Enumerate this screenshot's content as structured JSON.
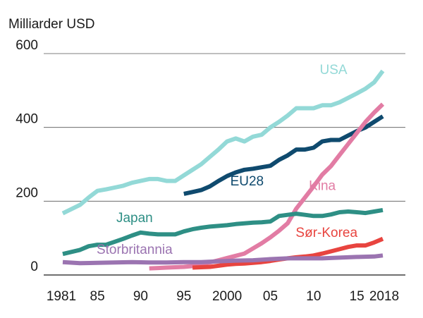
{
  "chart_data": {
    "type": "line",
    "title": "",
    "ylabel": "Milliarder USD",
    "xlabel": "",
    "ylim": [
      0,
      600
    ],
    "yticks": [
      0,
      200,
      400,
      600
    ],
    "xlim": [
      1981,
      2018
    ],
    "xticks": [
      {
        "value": 1981,
        "label": "1981"
      },
      {
        "value": 1985,
        "label": "85"
      },
      {
        "value": 1990,
        "label": "90"
      },
      {
        "value": 1995,
        "label": "95"
      },
      {
        "value": 2000,
        "label": "2000"
      },
      {
        "value": 2005,
        "label": "05"
      },
      {
        "value": 2010,
        "label": "10"
      },
      {
        "value": 2015,
        "label": "15"
      },
      {
        "value": 2018,
        "label": "2018"
      }
    ],
    "grid": true,
    "series": [
      {
        "name": "USA",
        "color": "#93d9d7",
        "label_x": 2012.3,
        "label_y": 545,
        "x": [
          1981,
          1983,
          1984,
          1985,
          1986,
          1987,
          1988,
          1989,
          1990,
          1991,
          1992,
          1993,
          1994,
          1995,
          1996,
          1997,
          1998,
          1999,
          2000,
          2001,
          2002,
          2003,
          2004,
          2005,
          2006,
          2007,
          2008,
          2009,
          2010,
          2011,
          2012,
          2013,
          2014,
          2015,
          2016,
          2017,
          2018
        ],
        "values": [
          167,
          190,
          210,
          228,
          232,
          237,
          242,
          250,
          255,
          260,
          260,
          255,
          255,
          270,
          285,
          300,
          320,
          340,
          362,
          370,
          362,
          375,
          380,
          400,
          415,
          432,
          452,
          452,
          452,
          460,
          460,
          468,
          480,
          492,
          505,
          522,
          553
        ]
      },
      {
        "name": "EU28",
        "color": "#0f4a6e",
        "label_x": 2002.3,
        "label_y": 243,
        "x": [
          1995,
          1996,
          1997,
          1998,
          1999,
          2000,
          2001,
          2002,
          2003,
          2004,
          2005,
          2006,
          2007,
          2008,
          2009,
          2010,
          2011,
          2012,
          2013,
          2014,
          2015,
          2016,
          2017,
          2018
        ],
        "values": [
          220,
          225,
          230,
          240,
          255,
          268,
          278,
          285,
          288,
          292,
          296,
          312,
          324,
          340,
          340,
          345,
          362,
          366,
          366,
          378,
          390,
          400,
          415,
          430
        ]
      },
      {
        "name": "Kina",
        "color": "#e27ca4",
        "label_x": 2011.0,
        "label_y": 230,
        "x": [
          1991,
          1992,
          1993,
          1994,
          1995,
          1996,
          1997,
          1998,
          1999,
          2000,
          2001,
          2002,
          2003,
          2004,
          2005,
          2006,
          2007,
          2008,
          2009,
          2010,
          2011,
          2012,
          2013,
          2014,
          2015,
          2016,
          2017,
          2018
        ],
        "values": [
          18,
          19,
          20,
          21,
          22,
          24,
          28,
          34,
          40,
          46,
          52,
          58,
          72,
          86,
          102,
          120,
          140,
          180,
          210,
          240,
          272,
          295,
          325,
          355,
          385,
          415,
          440,
          463
        ]
      },
      {
        "name": "Japan",
        "color": "#2e8f85",
        "label_x": 1989.3,
        "label_y": 143,
        "x": [
          1981,
          1983,
          1984,
          1985,
          1986,
          1987,
          1988,
          1989,
          1990,
          1991,
          1992,
          1993,
          1994,
          1995,
          1996,
          1997,
          1998,
          1999,
          2000,
          2001,
          2002,
          2003,
          2004,
          2005,
          2006,
          2007,
          2008,
          2009,
          2010,
          2011,
          2012,
          2013,
          2014,
          2015,
          2016,
          2017,
          2018
        ],
        "values": [
          57,
          68,
          78,
          82,
          82,
          90,
          98,
          107,
          115,
          112,
          110,
          110,
          110,
          118,
          124,
          128,
          131,
          133,
          135,
          138,
          140,
          142,
          143,
          145,
          160,
          163,
          166,
          163,
          160,
          160,
          164,
          170,
          172,
          170,
          168,
          172,
          176
        ]
      },
      {
        "name": "Sør-Korea",
        "color": "#e8443f",
        "label_x": 2011.5,
        "label_y": 103,
        "x": [
          1996,
          1997,
          1998,
          1999,
          2000,
          2001,
          2002,
          2003,
          2004,
          2005,
          2006,
          2007,
          2008,
          2009,
          2010,
          2011,
          2012,
          2013,
          2014,
          2015,
          2016,
          2017,
          2018
        ],
        "values": [
          20,
          21,
          22,
          25,
          28,
          30,
          31,
          33,
          35,
          38,
          42,
          45,
          48,
          50,
          53,
          58,
          64,
          70,
          76,
          80,
          80,
          88,
          98
        ]
      },
      {
        "name": "Storbritannia",
        "color": "#9b74b1",
        "label_x": 1989.3,
        "label_y": 57,
        "x": [
          1981,
          1983,
          1985,
          1987,
          1989,
          1991,
          1993,
          1995,
          1997,
          1999,
          2001,
          2003,
          2005,
          2007,
          2009,
          2011,
          2013,
          2015,
          2017,
          2018
        ],
        "values": [
          35,
          32,
          33,
          34,
          35,
          34,
          34,
          35,
          35,
          37,
          39,
          40,
          43,
          45,
          45,
          45,
          47,
          49,
          50,
          53
        ]
      }
    ]
  }
}
